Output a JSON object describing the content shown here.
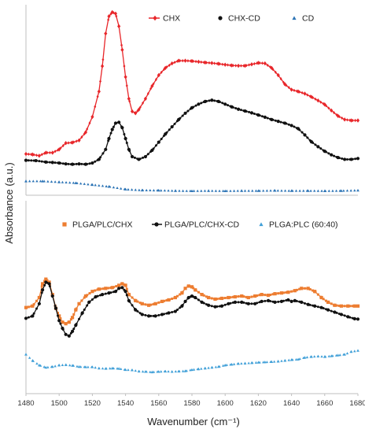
{
  "chart_data": {
    "type": "line",
    "xlabel": "Wavenumber (cm⁻¹)",
    "ylabel": "Absorbance (a.u.)",
    "xlim": [
      1480,
      1680
    ],
    "x_ticks": [
      "1480",
      "1500",
      "1520",
      "1540",
      "1560",
      "1580",
      "1600",
      "1620",
      "1640",
      "1660",
      "1680"
    ],
    "grid": false,
    "panels": [
      {
        "position": "top",
        "legend_placement": "top-right",
        "series": [
          {
            "name": "CHX",
            "color": "#e8262a",
            "marker": "diamond",
            "x": [
              1480,
              1484,
              1488,
              1492,
              1496,
              1500,
              1504,
              1508,
              1512,
              1516,
              1520,
              1524,
              1526,
              1528,
              1530,
              1532,
              1534,
              1536,
              1538,
              1540,
              1542,
              1544,
              1546,
              1548,
              1552,
              1556,
              1560,
              1564,
              1568,
              1572,
              1576,
              1580,
              1584,
              1588,
              1592,
              1596,
              1600,
              1604,
              1608,
              1612,
              1616,
              1620,
              1624,
              1628,
              1632,
              1636,
              1640,
              1644,
              1648,
              1652,
              1656,
              1660,
              1664,
              1668,
              1672,
              1676,
              1680
            ],
            "y": [
              0.215,
              0.212,
              0.205,
              0.222,
              0.222,
              0.24,
              0.275,
              0.278,
              0.29,
              0.335,
              0.42,
              0.56,
              0.7,
              0.88,
              0.975,
              0.998,
              0.99,
              0.92,
              0.79,
              0.64,
              0.52,
              0.45,
              0.44,
              0.46,
              0.52,
              0.59,
              0.65,
              0.69,
              0.715,
              0.73,
              0.73,
              0.728,
              0.724,
              0.72,
              0.717,
              0.713,
              0.708,
              0.704,
              0.702,
              0.702,
              0.71,
              0.718,
              0.715,
              0.69,
              0.65,
              0.6,
              0.57,
              0.56,
              0.548,
              0.53,
              0.51,
              0.488,
              0.455,
              0.425,
              0.405,
              0.4,
              0.4
            ]
          },
          {
            "name": "CHX-CD",
            "color": "#111111",
            "marker": "circle",
            "x": [
              1480,
              1486,
              1492,
              1496,
              1500,
              1504,
              1508,
              1512,
              1516,
              1520,
              1524,
              1528,
              1530,
              1532,
              1534,
              1536,
              1538,
              1540,
              1542,
              1544,
              1548,
              1552,
              1556,
              1560,
              1564,
              1568,
              1572,
              1576,
              1580,
              1584,
              1588,
              1592,
              1596,
              1600,
              1604,
              1608,
              1612,
              1616,
              1620,
              1624,
              1628,
              1632,
              1636,
              1640,
              1644,
              1648,
              1652,
              1656,
              1660,
              1664,
              1668,
              1672,
              1676,
              1680
            ],
            "y": [
              0.18,
              0.178,
              0.17,
              0.168,
              0.165,
              0.16,
              0.158,
              0.16,
              0.158,
              0.165,
              0.185,
              0.24,
              0.3,
              0.35,
              0.385,
              0.39,
              0.36,
              0.3,
              0.24,
              0.2,
              0.185,
              0.2,
              0.235,
              0.28,
              0.325,
              0.365,
              0.405,
              0.44,
              0.47,
              0.49,
              0.505,
              0.512,
              0.505,
              0.49,
              0.475,
              0.462,
              0.452,
              0.442,
              0.43,
              0.418,
              0.405,
              0.395,
              0.385,
              0.372,
              0.355,
              0.32,
              0.282,
              0.255,
              0.23,
              0.21,
              0.195,
              0.185,
              0.185,
              0.19
            ]
          },
          {
            "name": "CD",
            "color": "#2e75b6",
            "marker": "triangle",
            "x": [
              1480,
              1490,
              1500,
              1510,
              1520,
              1530,
              1540,
              1550,
              1560,
              1570,
              1580,
              1590,
              1600,
              1610,
              1620,
              1630,
              1640,
              1650,
              1660,
              1670,
              1680
            ],
            "y": [
              0.065,
              0.065,
              0.06,
              0.055,
              0.045,
              0.035,
              0.02,
              0.015,
              0.014,
              0.012,
              0.011,
              0.012,
              0.011,
              0.012,
              0.012,
              0.013,
              0.012,
              0.012,
              0.011,
              0.012,
              0.014
            ]
          }
        ]
      },
      {
        "position": "bottom",
        "legend_placement": "top",
        "series": [
          {
            "name": "PLGA/PLC/CHX",
            "color": "#ed7d31",
            "marker": "square",
            "x": [
              1480,
              1484,
              1488,
              1490,
              1492,
              1494,
              1496,
              1498,
              1500,
              1502,
              1504,
              1506,
              1508,
              1510,
              1512,
              1516,
              1520,
              1524,
              1528,
              1532,
              1536,
              1538,
              1540,
              1542,
              1546,
              1550,
              1554,
              1558,
              1562,
              1566,
              1570,
              1574,
              1576,
              1578,
              1580,
              1582,
              1586,
              1590,
              1594,
              1598,
              1602,
              1606,
              1610,
              1614,
              1618,
              1622,
              1626,
              1630,
              1634,
              1638,
              1642,
              1646,
              1650,
              1654,
              1658,
              1662,
              1666,
              1670,
              1674,
              1678,
              1680
            ],
            "y": [
              0.535,
              0.545,
              0.6,
              0.69,
              0.72,
              0.7,
              0.62,
              0.53,
              0.48,
              0.44,
              0.43,
              0.44,
              0.47,
              0.52,
              0.56,
              0.61,
              0.64,
              0.655,
              0.66,
              0.665,
              0.68,
              0.69,
              0.68,
              0.62,
              0.58,
              0.56,
              0.55,
              0.56,
              0.575,
              0.585,
              0.6,
              0.63,
              0.66,
              0.675,
              0.67,
              0.65,
              0.62,
              0.6,
              0.59,
              0.595,
              0.6,
              0.605,
              0.61,
              0.6,
              0.61,
              0.62,
              0.615,
              0.625,
              0.63,
              0.635,
              0.645,
              0.66,
              0.66,
              0.64,
              0.6,
              0.57,
              0.55,
              0.545,
              0.545,
              0.545,
              0.545
            ]
          },
          {
            "name": "PLGA/PLC/CHX-CD",
            "color": "#111111",
            "marker": "circle",
            "x": [
              1480,
              1484,
              1488,
              1490,
              1492,
              1494,
              1496,
              1498,
              1500,
              1502,
              1504,
              1506,
              1508,
              1510,
              1514,
              1518,
              1522,
              1526,
              1530,
              1534,
              1536,
              1538,
              1540,
              1542,
              1546,
              1550,
              1554,
              1558,
              1562,
              1566,
              1570,
              1574,
              1576,
              1578,
              1580,
              1582,
              1586,
              1590,
              1594,
              1598,
              1602,
              1606,
              1610,
              1614,
              1618,
              1622,
              1626,
              1630,
              1634,
              1638,
              1640,
              1642,
              1646,
              1650,
              1654,
              1658,
              1662,
              1666,
              1670,
              1674,
              1678,
              1680
            ],
            "y": [
              0.465,
              0.48,
              0.56,
              0.65,
              0.7,
              0.69,
              0.61,
              0.53,
              0.45,
              0.4,
              0.36,
              0.35,
              0.38,
              0.42,
              0.5,
              0.57,
              0.605,
              0.62,
              0.63,
              0.64,
              0.66,
              0.665,
              0.64,
              0.58,
              0.52,
              0.49,
              0.48,
              0.48,
              0.49,
              0.5,
              0.51,
              0.545,
              0.575,
              0.6,
              0.61,
              0.6,
              0.57,
              0.55,
              0.54,
              0.545,
              0.56,
              0.57,
              0.57,
              0.56,
              0.56,
              0.575,
              0.58,
              0.57,
              0.575,
              0.585,
              0.575,
              0.58,
              0.57,
              0.555,
              0.545,
              0.535,
              0.52,
              0.505,
              0.49,
              0.475,
              0.462,
              0.46
            ]
          },
          {
            "name": "PLGA:PLC (60:40)",
            "color": "#41a0d8",
            "marker": "triangle",
            "x": [
              1480,
              1484,
              1488,
              1492,
              1496,
              1500,
              1504,
              1508,
              1512,
              1516,
              1520,
              1524,
              1528,
              1532,
              1536,
              1540,
              1544,
              1548,
              1552,
              1556,
              1560,
              1564,
              1568,
              1572,
              1576,
              1580,
              1584,
              1588,
              1592,
              1596,
              1600,
              1604,
              1608,
              1612,
              1616,
              1620,
              1624,
              1628,
              1632,
              1636,
              1640,
              1644,
              1648,
              1652,
              1656,
              1660,
              1664,
              1668,
              1672,
              1676,
              1680
            ],
            "y": [
              0.23,
              0.19,
              0.16,
              0.145,
              0.15,
              0.16,
              0.162,
              0.158,
              0.15,
              0.148,
              0.148,
              0.14,
              0.138,
              0.14,
              0.138,
              0.13,
              0.128,
              0.12,
              0.118,
              0.115,
              0.118,
              0.12,
              0.118,
              0.12,
              0.122,
              0.13,
              0.135,
              0.14,
              0.145,
              0.15,
              0.16,
              0.165,
              0.17,
              0.172,
              0.175,
              0.178,
              0.18,
              0.182,
              0.185,
              0.19,
              0.195,
              0.198,
              0.21,
              0.215,
              0.218,
              0.215,
              0.22,
              0.225,
              0.23,
              0.248,
              0.255
            ]
          }
        ]
      }
    ]
  }
}
